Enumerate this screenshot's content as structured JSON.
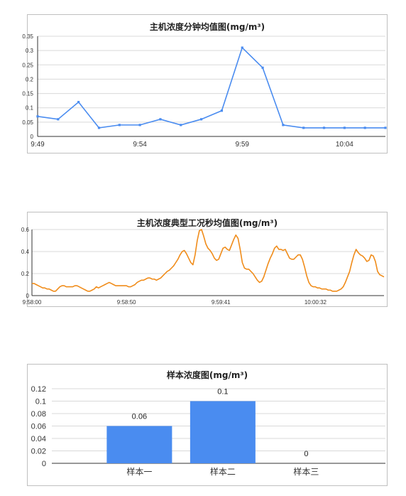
{
  "chart_data": [
    {
      "type": "line",
      "title": "主机浓度分钟均值图(mg/m³)",
      "color": "#4a8cf0",
      "x": [
        "9:49",
        "9:50",
        "9:51",
        "9:52",
        "9:53",
        "9:54",
        "9:55",
        "9:56",
        "9:57",
        "9:58",
        "9:59",
        "10:00",
        "10:01",
        "10:02",
        "10:03",
        "10:04",
        "10:05",
        "10:06"
      ],
      "values": [
        0.07,
        0.06,
        0.12,
        0.03,
        0.04,
        0.04,
        0.06,
        0.04,
        0.06,
        0.09,
        0.31,
        0.24,
        0.04,
        0.03,
        0.03,
        0.03,
        0.03,
        0.03
      ],
      "x_tick_labels": [
        "9:49",
        "9:54",
        "9:59",
        "10:04"
      ],
      "y_ticks": [
        "0",
        "0.05",
        "0.1",
        "0.15",
        "0.2",
        "0.25",
        "0.3",
        "0.35"
      ],
      "ylim": [
        0,
        0.35
      ],
      "grid": true,
      "markers": true
    },
    {
      "type": "line",
      "title": "主机浓度典型工况秒均值图(mg/m³)",
      "color": "#f08c1a",
      "x_start": "9:58:00",
      "x_end": "10:01:10",
      "values": [
        0.11,
        0.11,
        0.1,
        0.09,
        0.08,
        0.07,
        0.07,
        0.06,
        0.06,
        0.05,
        0.04,
        0.04,
        0.06,
        0.08,
        0.09,
        0.09,
        0.08,
        0.08,
        0.08,
        0.08,
        0.09,
        0.09,
        0.08,
        0.07,
        0.06,
        0.05,
        0.04,
        0.04,
        0.05,
        0.06,
        0.08,
        0.07,
        0.08,
        0.09,
        0.1,
        0.11,
        0.12,
        0.11,
        0.1,
        0.09,
        0.09,
        0.09,
        0.09,
        0.09,
        0.09,
        0.08,
        0.08,
        0.09,
        0.1,
        0.12,
        0.13,
        0.14,
        0.14,
        0.15,
        0.16,
        0.16,
        0.15,
        0.15,
        0.14,
        0.15,
        0.16,
        0.18,
        0.2,
        0.22,
        0.23,
        0.25,
        0.27,
        0.3,
        0.33,
        0.37,
        0.4,
        0.41,
        0.38,
        0.34,
        0.3,
        0.28,
        0.37,
        0.5,
        0.59,
        0.6,
        0.54,
        0.47,
        0.43,
        0.41,
        0.38,
        0.34,
        0.32,
        0.33,
        0.38,
        0.43,
        0.44,
        0.42,
        0.41,
        0.46,
        0.51,
        0.55,
        0.52,
        0.42,
        0.3,
        0.25,
        0.24,
        0.24,
        0.22,
        0.2,
        0.17,
        0.14,
        0.12,
        0.13,
        0.17,
        0.23,
        0.29,
        0.34,
        0.38,
        0.43,
        0.45,
        0.42,
        0.42,
        0.41,
        0.42,
        0.38,
        0.34,
        0.33,
        0.33,
        0.35,
        0.37,
        0.37,
        0.33,
        0.26,
        0.18,
        0.12,
        0.09,
        0.08,
        0.08,
        0.07,
        0.07,
        0.06,
        0.06,
        0.06,
        0.05,
        0.05,
        0.04,
        0.04,
        0.04,
        0.05,
        0.06,
        0.08,
        0.12,
        0.17,
        0.22,
        0.3,
        0.37,
        0.42,
        0.39,
        0.37,
        0.36,
        0.34,
        0.31,
        0.32,
        0.37,
        0.36,
        0.31,
        0.22,
        0.19,
        0.18,
        0.17
      ],
      "x_tick_labels": [
        "9:58:00",
        "9:58:50",
        "9:59:41",
        "10:00:32"
      ],
      "y_ticks": [
        "0",
        "0.2",
        "0.4",
        "0.6"
      ],
      "ylim": [
        0,
        0.6
      ],
      "grid": true
    },
    {
      "type": "bar",
      "title": "样本浓度图(mg/m³)",
      "color": "#4a8cf0",
      "categories": [
        "样本一",
        "样本二",
        "样本三"
      ],
      "values": [
        0.06,
        0.1,
        0
      ],
      "data_labels": [
        "0.06",
        "0.1",
        "0"
      ],
      "y_ticks": [
        "0",
        "0.02",
        "0.04",
        "0.06",
        "0.08",
        "0.1",
        "0.12"
      ],
      "ylim": [
        0,
        0.12
      ],
      "grid": true
    }
  ]
}
